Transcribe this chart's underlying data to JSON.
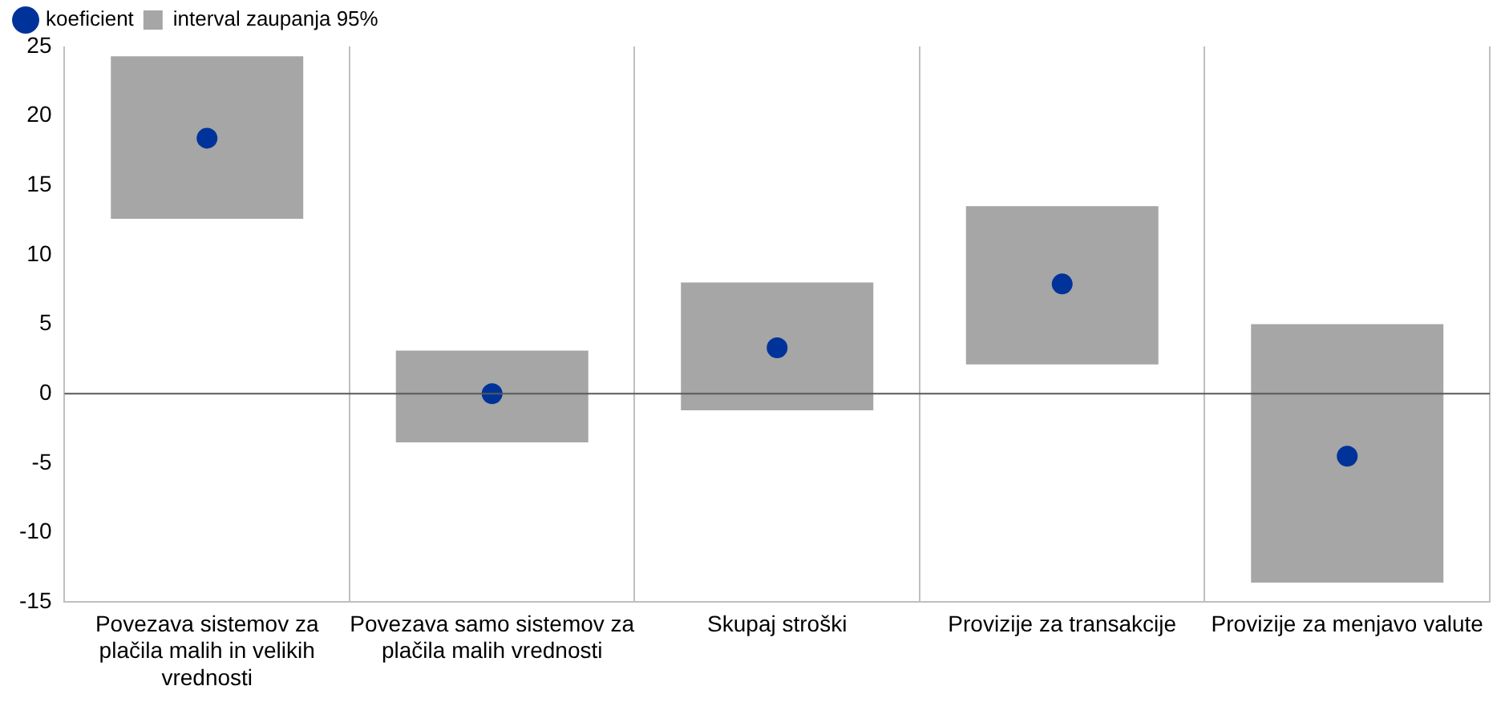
{
  "chart_data": {
    "type": "bar",
    "categories": [
      "Povezava sistemov za plačila malih in velikih vrednosti",
      "Povezava samo sistemov za plačila malih vrednosti",
      "Skupaj stroški",
      "Provizije za transakcije",
      "Provizije za menjavo valute"
    ],
    "series": [
      {
        "name": "koeficient",
        "type": "scatter",
        "color": "#003399",
        "x": [
          "Povezava sistemov za plačila malih in velikih vrednosti",
          "Povezava samo sistemov za plačila malih vrednosti",
          "Skupaj stroški",
          "Provizije za transakcije",
          "Provizije za menjavo valute"
        ],
        "values": [
          18.4,
          0,
          3.3,
          7.9,
          -4.5
        ]
      },
      {
        "name": "interval zaupanja 95%",
        "color": "#a6a6a6",
        "base": [
          12.6,
          -3.5,
          -1.2,
          2.1,
          -13.6
        ],
        "values": [
          11.7,
          6.6,
          9.2,
          11.4,
          18.6
        ]
      }
    ],
    "ylim": [
      -15,
      25
    ],
    "yticks": [
      -15,
      -10,
      -5,
      0,
      5,
      10,
      15,
      20,
      25
    ],
    "grid": "x",
    "legend": "top left",
    "marker": "circle",
    "ref_lines": [
      {
        "axis": "y",
        "value": 0,
        "color": "#595959"
      }
    ]
  }
}
